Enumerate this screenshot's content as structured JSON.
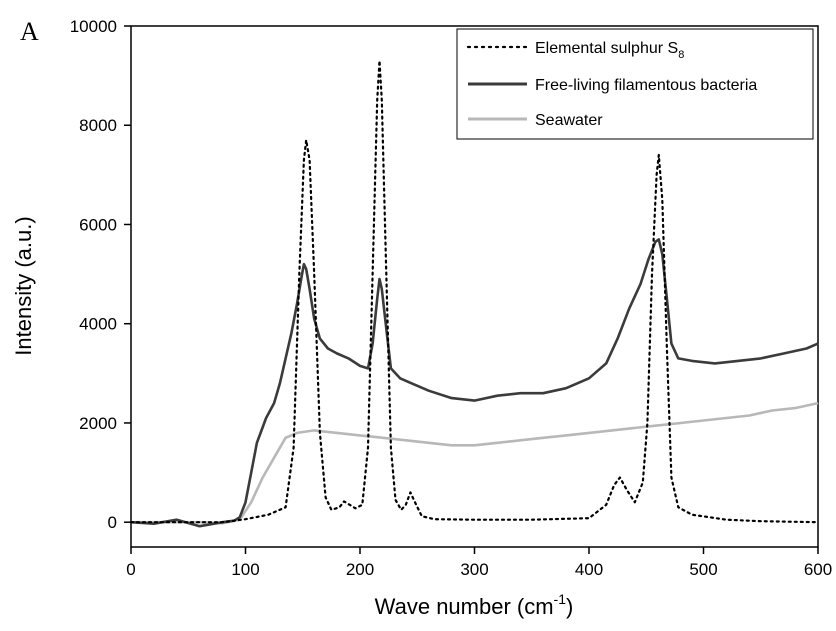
{
  "chart_data": {
    "type": "line",
    "panel_label": "A",
    "xlabel": "Wave number (cm",
    "xlabel_sup": "-1",
    "xlabel_close": ")",
    "ylabel": "Intensity (a.u.)",
    "xlim": [
      0,
      600
    ],
    "ylim": [
      -500,
      10000
    ],
    "xticks": [
      0,
      100,
      200,
      300,
      400,
      500,
      600
    ],
    "yticks": [
      0,
      2000,
      4000,
      6000,
      8000,
      10000
    ],
    "grid": false,
    "legend_position": "top-right",
    "series": [
      {
        "name": "Elemental sulphur S",
        "name_sub": "8",
        "style": "dotted",
        "color": "#000000",
        "points": [
          [
            0,
            0
          ],
          [
            20,
            0
          ],
          [
            40,
            0
          ],
          [
            60,
            0
          ],
          [
            80,
            0
          ],
          [
            100,
            60
          ],
          [
            120,
            150
          ],
          [
            135,
            300
          ],
          [
            142,
            1500
          ],
          [
            147,
            5000
          ],
          [
            151,
            7300
          ],
          [
            153,
            7700
          ],
          [
            156,
            7300
          ],
          [
            160,
            5000
          ],
          [
            165,
            1800
          ],
          [
            170,
            500
          ],
          [
            175,
            250
          ],
          [
            182,
            300
          ],
          [
            186,
            420
          ],
          [
            191,
            350
          ],
          [
            196,
            280
          ],
          [
            202,
            350
          ],
          [
            207,
            1500
          ],
          [
            211,
            5000
          ],
          [
            215,
            8500
          ],
          [
            217,
            9300
          ],
          [
            219,
            8500
          ],
          [
            223,
            5000
          ],
          [
            227,
            1500
          ],
          [
            231,
            450
          ],
          [
            236,
            250
          ],
          [
            240,
            350
          ],
          [
            244,
            600
          ],
          [
            248,
            400
          ],
          [
            254,
            120
          ],
          [
            265,
            60
          ],
          [
            300,
            50
          ],
          [
            350,
            50
          ],
          [
            400,
            80
          ],
          [
            415,
            350
          ],
          [
            422,
            750
          ],
          [
            427,
            900
          ],
          [
            433,
            650
          ],
          [
            440,
            400
          ],
          [
            447,
            800
          ],
          [
            451,
            2000
          ],
          [
            455,
            5000
          ],
          [
            459,
            7000
          ],
          [
            461,
            7400
          ],
          [
            464,
            6500
          ],
          [
            468,
            3500
          ],
          [
            472,
            900
          ],
          [
            478,
            300
          ],
          [
            490,
            150
          ],
          [
            520,
            50
          ],
          [
            550,
            20
          ],
          [
            600,
            0
          ]
        ]
      },
      {
        "name": "Free-living filamentous bacteria",
        "style": "solid",
        "color": "#3b3b3b",
        "points": [
          [
            0,
            0
          ],
          [
            20,
            -30
          ],
          [
            40,
            50
          ],
          [
            60,
            -80
          ],
          [
            80,
            0
          ],
          [
            90,
            30
          ],
          [
            95,
            100
          ],
          [
            100,
            400
          ],
          [
            105,
            1000
          ],
          [
            110,
            1600
          ],
          [
            118,
            2100
          ],
          [
            125,
            2400
          ],
          [
            130,
            2800
          ],
          [
            135,
            3300
          ],
          [
            140,
            3800
          ],
          [
            145,
            4400
          ],
          [
            149,
            4950
          ],
          [
            151,
            5200
          ],
          [
            153,
            5100
          ],
          [
            156,
            4700
          ],
          [
            160,
            4100
          ],
          [
            165,
            3700
          ],
          [
            172,
            3500
          ],
          [
            180,
            3400
          ],
          [
            190,
            3300
          ],
          [
            200,
            3150
          ],
          [
            207,
            3100
          ],
          [
            211,
            3600
          ],
          [
            215,
            4500
          ],
          [
            217,
            4900
          ],
          [
            219,
            4700
          ],
          [
            223,
            3900
          ],
          [
            227,
            3100
          ],
          [
            235,
            2900
          ],
          [
            245,
            2800
          ],
          [
            260,
            2650
          ],
          [
            280,
            2500
          ],
          [
            300,
            2450
          ],
          [
            320,
            2550
          ],
          [
            340,
            2600
          ],
          [
            360,
            2600
          ],
          [
            380,
            2700
          ],
          [
            400,
            2900
          ],
          [
            415,
            3200
          ],
          [
            425,
            3700
          ],
          [
            435,
            4300
          ],
          [
            445,
            4800
          ],
          [
            452,
            5300
          ],
          [
            458,
            5650
          ],
          [
            461,
            5700
          ],
          [
            464,
            5400
          ],
          [
            468,
            4500
          ],
          [
            472,
            3600
          ],
          [
            478,
            3300
          ],
          [
            490,
            3250
          ],
          [
            510,
            3200
          ],
          [
            530,
            3250
          ],
          [
            550,
            3300
          ],
          [
            570,
            3400
          ],
          [
            590,
            3500
          ],
          [
            600,
            3600
          ]
        ]
      },
      {
        "name": "Seawater",
        "style": "solid",
        "color": "#b8b8b8",
        "points": [
          [
            0,
            0
          ],
          [
            20,
            0
          ],
          [
            40,
            0
          ],
          [
            60,
            0
          ],
          [
            80,
            -20
          ],
          [
            95,
            50
          ],
          [
            105,
            400
          ],
          [
            115,
            900
          ],
          [
            125,
            1300
          ],
          [
            135,
            1700
          ],
          [
            145,
            1800
          ],
          [
            160,
            1850
          ],
          [
            180,
            1800
          ],
          [
            200,
            1750
          ],
          [
            220,
            1700
          ],
          [
            240,
            1650
          ],
          [
            260,
            1600
          ],
          [
            280,
            1550
          ],
          [
            300,
            1550
          ],
          [
            320,
            1600
          ],
          [
            340,
            1650
          ],
          [
            360,
            1700
          ],
          [
            380,
            1750
          ],
          [
            400,
            1800
          ],
          [
            420,
            1850
          ],
          [
            440,
            1900
          ],
          [
            460,
            1950
          ],
          [
            480,
            2000
          ],
          [
            500,
            2050
          ],
          [
            520,
            2100
          ],
          [
            540,
            2150
          ],
          [
            560,
            2250
          ],
          [
            580,
            2300
          ],
          [
            600,
            2400
          ]
        ]
      }
    ]
  }
}
